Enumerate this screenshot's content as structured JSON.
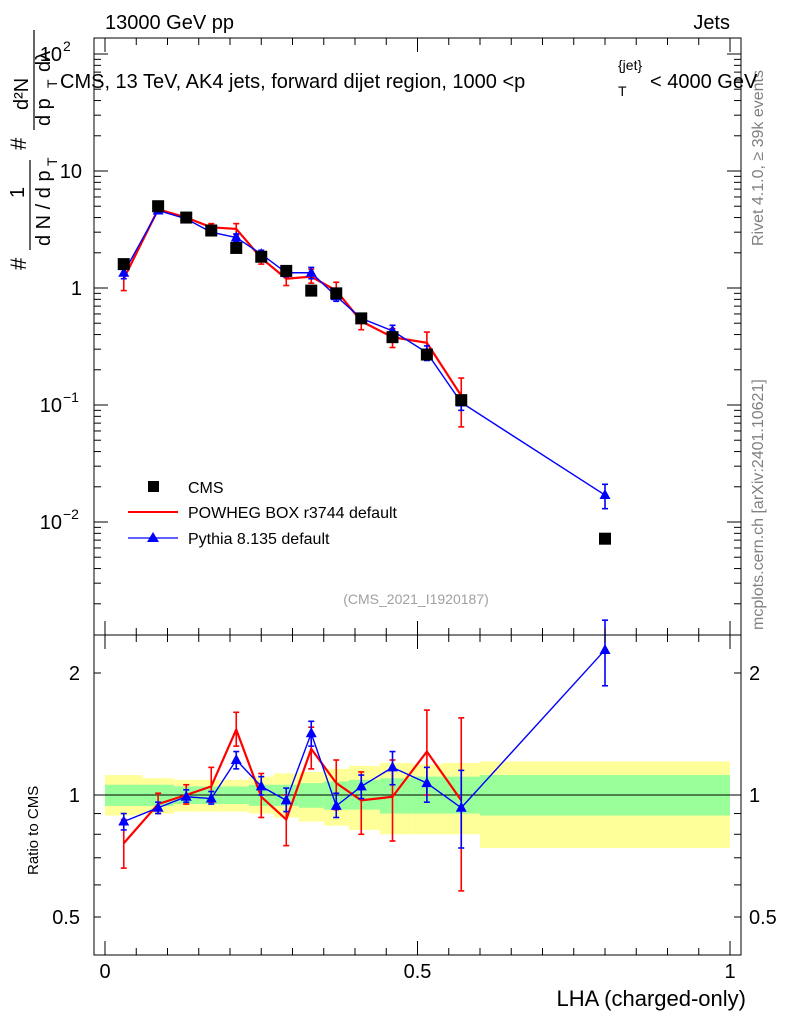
{
  "header": {
    "left": "13000 GeV pp",
    "right": "Jets"
  },
  "side_labels": {
    "rivet": "Rivet 4.1.0, ≥ 39k events",
    "mcplots": "mcplots.cern.ch [arXiv:2401.10621]"
  },
  "analysis_id": "(CMS_2021_I1920187)",
  "y_axis_label": {
    "n1": "1",
    "d1": "d N / d p",
    "sub1": "T",
    "n2": "d²N",
    "d2a": "d p",
    "sub2": "T",
    "d2b": "dλ",
    "hash": "#"
  },
  "ratio_ylabel": "Ratio to CMS",
  "colors": {
    "data": "#000000",
    "powheg": "#ff0000",
    "pythia": "#0000ff",
    "band_inner": "#99ff99",
    "band_outer": "#ffff99"
  },
  "chart_data": [
    {
      "type": "scatter",
      "panel": "main",
      "title": "CMS, 13 TeV, AK4 jets, forward dijet region, 1000 <p",
      "title_sub": "T",
      "title_sup": "{jet}",
      "title_tail": "< 4000 GeV",
      "xlabel": "LHA (charged-only)",
      "yscale": "log",
      "xlim": [
        -0.03,
        1.0
      ],
      "ylim": [
        0.001,
        200
      ],
      "yticks": [
        {
          "value": 0.01,
          "base": "10",
          "exp": "−2"
        },
        {
          "value": 0.1,
          "base": "10",
          "exp": "−1"
        },
        {
          "value": 1,
          "label": "1"
        },
        {
          "value": 10,
          "label": "10"
        },
        {
          "value": 100,
          "base": "10",
          "exp": "2"
        }
      ],
      "legend": [
        {
          "key": "data",
          "label": "CMS"
        },
        {
          "key": "powheg",
          "label": "POWHEG BOX r3744 default"
        },
        {
          "key": "pythia",
          "label": "Pythia 8.135 default"
        }
      ],
      "legend_position": "bottom-left",
      "series": [
        {
          "name": "CMS",
          "key": "data",
          "x": [
            0.03,
            0.085,
            0.13,
            0.17,
            0.21,
            0.25,
            0.29,
            0.33,
            0.37,
            0.41,
            0.46,
            0.515,
            0.57,
            0.8
          ],
          "values": [
            1.6,
            5.0,
            4.0,
            3.1,
            2.2,
            1.85,
            1.4,
            0.95,
            0.9,
            0.55,
            0.38,
            0.27,
            0.11,
            0.0072
          ]
        },
        {
          "name": "POWHEG BOX r3744 default",
          "key": "powheg",
          "x": [
            0.03,
            0.085,
            0.13,
            0.17,
            0.21,
            0.25,
            0.29,
            0.33,
            0.37,
            0.41,
            0.46,
            0.515,
            0.57
          ],
          "values": [
            1.2,
            4.7,
            4.0,
            3.3,
            3.2,
            1.8,
            1.2,
            1.25,
            0.95,
            0.52,
            0.38,
            0.34,
            0.12
          ],
          "err_low": [
            0.95,
            4.4,
            3.8,
            3.05,
            2.85,
            1.6,
            1.05,
            1.1,
            0.82,
            0.44,
            0.31,
            0.25,
            0.065
          ],
          "err_high": [
            1.5,
            5.0,
            4.2,
            3.55,
            3.55,
            2.0,
            1.4,
            1.45,
            1.12,
            0.6,
            0.45,
            0.42,
            0.17
          ]
        },
        {
          "name": "Pythia 8.135 default",
          "key": "pythia",
          "x": [
            0.03,
            0.085,
            0.13,
            0.17,
            0.21,
            0.25,
            0.29,
            0.33,
            0.37,
            0.41,
            0.46,
            0.515,
            0.57,
            0.8
          ],
          "values": [
            1.35,
            4.6,
            3.9,
            3.0,
            2.7,
            1.95,
            1.35,
            1.35,
            0.85,
            0.55,
            0.43,
            0.28,
            0.105,
            0.017
          ],
          "err_low": [
            1.2,
            4.45,
            3.75,
            2.85,
            2.5,
            1.8,
            1.25,
            1.2,
            0.77,
            0.5,
            0.38,
            0.24,
            0.09,
            0.013
          ],
          "err_high": [
            1.5,
            4.75,
            4.05,
            3.15,
            2.9,
            2.1,
            1.45,
            1.5,
            0.93,
            0.6,
            0.48,
            0.32,
            0.12,
            0.021
          ]
        }
      ]
    },
    {
      "type": "line",
      "panel": "ratio",
      "ylabel": "Ratio to CMS",
      "yscale": "log",
      "ylim": [
        0.4,
        2.4
      ],
      "yticks": [
        {
          "value": 0.5,
          "label": "0.5"
        },
        {
          "value": 1,
          "label": "1"
        },
        {
          "value": 2,
          "label": "2"
        }
      ],
      "xticks": [
        {
          "value": 0,
          "label": "0"
        },
        {
          "value": 0.5,
          "label": "0.5"
        },
        {
          "value": 1,
          "label": "1"
        }
      ],
      "bands": [
        {
          "x0": 0.0,
          "x1": 0.06,
          "inner": [
            0.94,
            1.06
          ],
          "outer": [
            0.89,
            1.12
          ]
        },
        {
          "x0": 0.06,
          "x1": 0.11,
          "inner": [
            0.94,
            1.06
          ],
          "outer": [
            0.9,
            1.1
          ]
        },
        {
          "x0": 0.11,
          "x1": 0.15,
          "inner": [
            0.95,
            1.05
          ],
          "outer": [
            0.91,
            1.09
          ]
        },
        {
          "x0": 0.15,
          "x1": 0.19,
          "inner": [
            0.95,
            1.05
          ],
          "outer": [
            0.91,
            1.09
          ]
        },
        {
          "x0": 0.19,
          "x1": 0.23,
          "inner": [
            0.95,
            1.05
          ],
          "outer": [
            0.91,
            1.09
          ]
        },
        {
          "x0": 0.23,
          "x1": 0.27,
          "inner": [
            0.94,
            1.06
          ],
          "outer": [
            0.9,
            1.11
          ]
        },
        {
          "x0": 0.27,
          "x1": 0.31,
          "inner": [
            0.94,
            1.06
          ],
          "outer": [
            0.88,
            1.13
          ]
        },
        {
          "x0": 0.31,
          "x1": 0.35,
          "inner": [
            0.93,
            1.07
          ],
          "outer": [
            0.86,
            1.14
          ]
        },
        {
          "x0": 0.35,
          "x1": 0.39,
          "inner": [
            0.92,
            1.08
          ],
          "outer": [
            0.84,
            1.16
          ]
        },
        {
          "x0": 0.39,
          "x1": 0.44,
          "inner": [
            0.92,
            1.09
          ],
          "outer": [
            0.82,
            1.18
          ]
        },
        {
          "x0": 0.44,
          "x1": 0.49,
          "inner": [
            0.9,
            1.1
          ],
          "outer": [
            0.8,
            1.2
          ]
        },
        {
          "x0": 0.49,
          "x1": 0.54,
          "inner": [
            0.9,
            1.11
          ],
          "outer": [
            0.8,
            1.19
          ]
        },
        {
          "x0": 0.54,
          "x1": 0.6,
          "inner": [
            0.9,
            1.11
          ],
          "outer": [
            0.8,
            1.2
          ]
        },
        {
          "x0": 0.6,
          "x1": 1.0,
          "inner": [
            0.89,
            1.12
          ],
          "outer": [
            0.74,
            1.21
          ]
        }
      ],
      "series": [
        {
          "name": "POWHEG BOX r3744 default",
          "key": "powheg",
          "x": [
            0.03,
            0.085,
            0.13,
            0.17,
            0.21,
            0.25,
            0.29,
            0.33,
            0.37,
            0.41,
            0.46,
            0.515,
            0.57
          ],
          "values": [
            0.76,
            0.95,
            1.0,
            1.05,
            1.45,
            0.99,
            0.87,
            1.3,
            1.07,
            0.97,
            0.99,
            1.28,
            0.97
          ],
          "err_low": [
            0.66,
            0.9,
            0.95,
            0.96,
            1.32,
            0.88,
            0.75,
            1.16,
            0.92,
            0.8,
            0.77,
            1.0,
            0.58
          ],
          "err_high": [
            0.87,
            1.01,
            1.06,
            1.17,
            1.6,
            1.13,
            1.0,
            1.47,
            1.22,
            1.14,
            1.22,
            1.62,
            1.55
          ]
        },
        {
          "name": "Pythia 8.135 default",
          "key": "pythia",
          "x": [
            0.03,
            0.085,
            0.13,
            0.17,
            0.21,
            0.25,
            0.29,
            0.33,
            0.37,
            0.41,
            0.46,
            0.515,
            0.57,
            0.8
          ],
          "values": [
            0.86,
            0.93,
            0.99,
            0.98,
            1.22,
            1.05,
            0.97,
            1.42,
            0.94,
            1.05,
            1.17,
            1.07,
            0.93,
            2.28
          ],
          "err_low": [
            0.82,
            0.9,
            0.96,
            0.95,
            1.16,
            1.0,
            0.91,
            1.32,
            0.88,
            0.98,
            1.06,
            0.96,
            0.74,
            1.86
          ],
          "err_high": [
            0.9,
            0.96,
            1.03,
            1.02,
            1.28,
            1.11,
            1.04,
            1.52,
            1.01,
            1.12,
            1.28,
            1.17,
            1.15,
            2.7
          ]
        }
      ]
    }
  ]
}
